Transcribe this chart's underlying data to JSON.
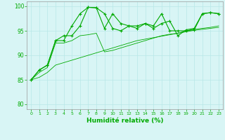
{
  "x": [
    0,
    1,
    2,
    3,
    4,
    5,
    6,
    7,
    8,
    9,
    10,
    11,
    12,
    13,
    14,
    15,
    16,
    17,
    18,
    19,
    20,
    21,
    22,
    23
  ],
  "line1": [
    85,
    87,
    88,
    93,
    93,
    96,
    98.5,
    99.8,
    99.7,
    98.5,
    95.5,
    95,
    96,
    95.5,
    96.5,
    96,
    98.5,
    95,
    95,
    95,
    95.2,
    98.5,
    98.7,
    98.5
  ],
  "line2": [
    85,
    87,
    88,
    93,
    94,
    94,
    96,
    99.8,
    99.7,
    95.5,
    98.5,
    96.5,
    96,
    96,
    96.5,
    95.5,
    96.5,
    97,
    94,
    95.2,
    95.5,
    98.5,
    98.7,
    98.5
  ],
  "line3": [
    85,
    86.5,
    87.5,
    92.5,
    92.5,
    93,
    94,
    94.2,
    94.5,
    90.7,
    91,
    91.5,
    92,
    92.5,
    93,
    93.5,
    94,
    94.3,
    94.5,
    95,
    95.3,
    95.5,
    95.7,
    96
  ],
  "line4": [
    85,
    85.5,
    86.5,
    88,
    88.5,
    89,
    89.5,
    90,
    90.5,
    91,
    91.5,
    92,
    92.5,
    93,
    93.3,
    93.6,
    93.9,
    94.2,
    94.5,
    94.8,
    95.1,
    95.3,
    95.5,
    95.7
  ],
  "bg_color": "#d8f5f5",
  "line_color": "#00aa00",
  "xlabel": "Humidité relative (%)",
  "xlabel_color": "#00aa00",
  "yticks": [
    80,
    85,
    90,
    95,
    100
  ],
  "ylim": [
    79,
    101
  ],
  "xlim": [
    -0.5,
    23.5
  ],
  "grid_color": "#b8e8e8",
  "marker": "+"
}
